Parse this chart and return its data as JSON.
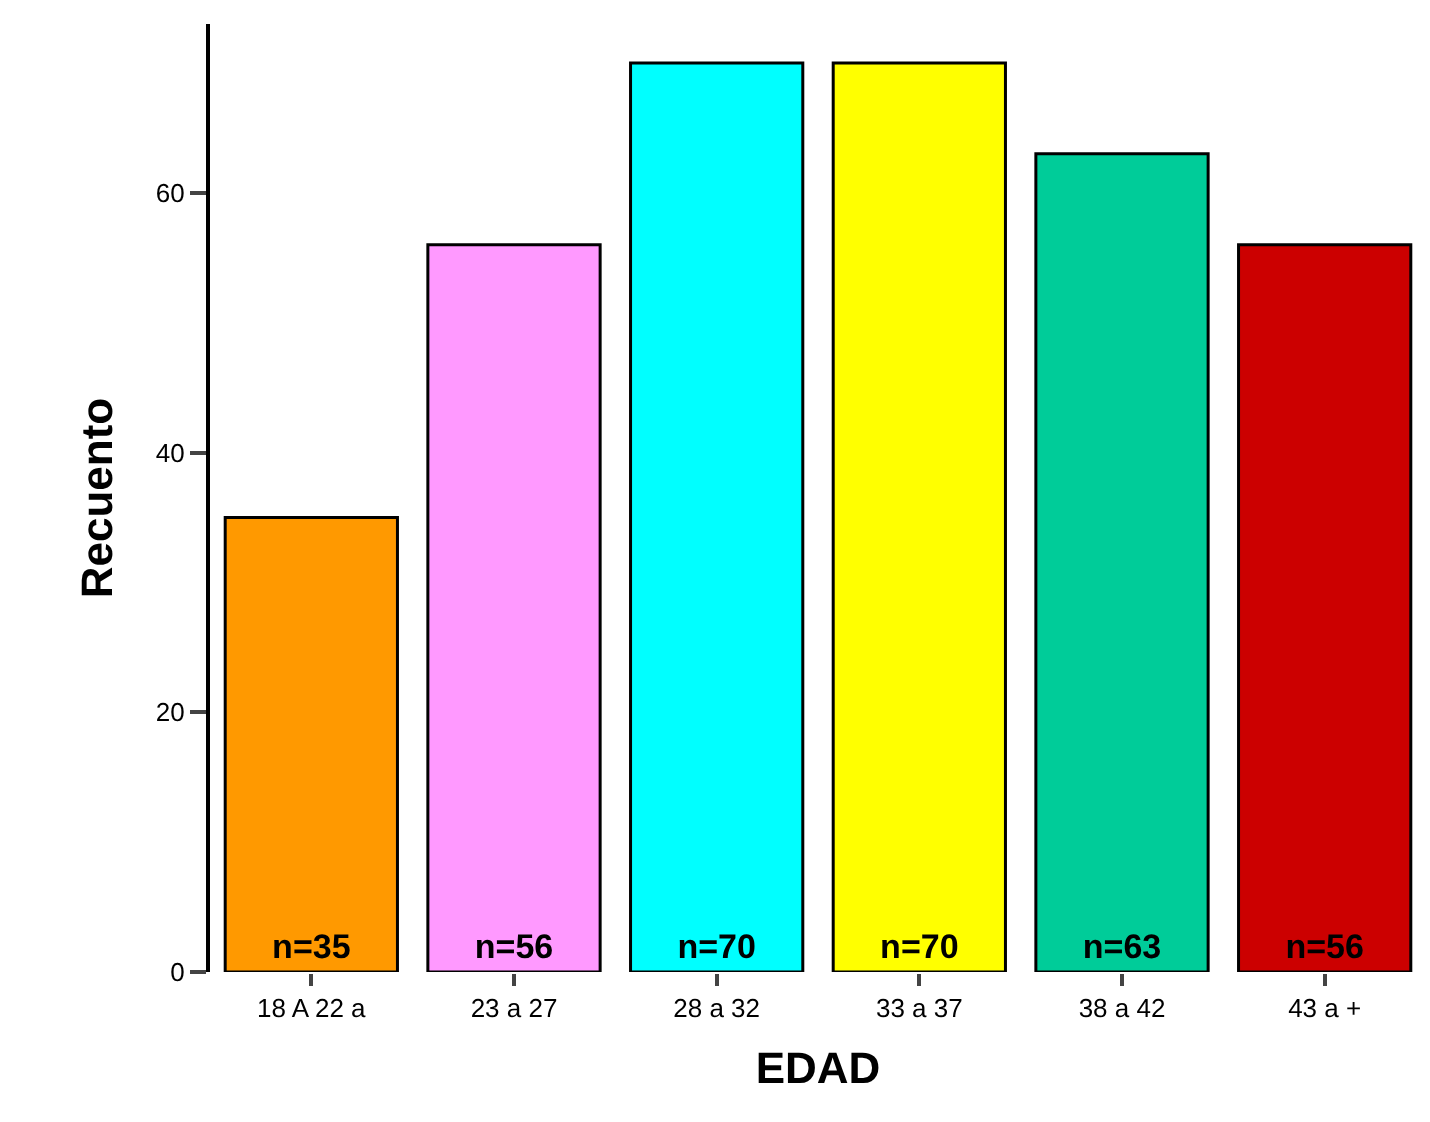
{
  "chart_data": {
    "type": "bar",
    "xlabel": "EDAD",
    "ylabel": "Recuento",
    "categories": [
      "18 A 22 a",
      "23 a 27",
      "28 a 32",
      "33 a 37",
      "38 a 42",
      "43 a +"
    ],
    "values": [
      35,
      56,
      70,
      70,
      63,
      56
    ],
    "colors": [
      "#ff9900",
      "#ff99ff",
      "#00ffff",
      "#ffff00",
      "#00cc99",
      "#cc0000"
    ],
    "value_labels": [
      "n=35",
      "n=56",
      "n=70",
      "n=70",
      "n=63",
      "n=56"
    ],
    "ylim": [
      0,
      73
    ],
    "yticks": [
      0,
      20,
      40,
      60
    ]
  }
}
